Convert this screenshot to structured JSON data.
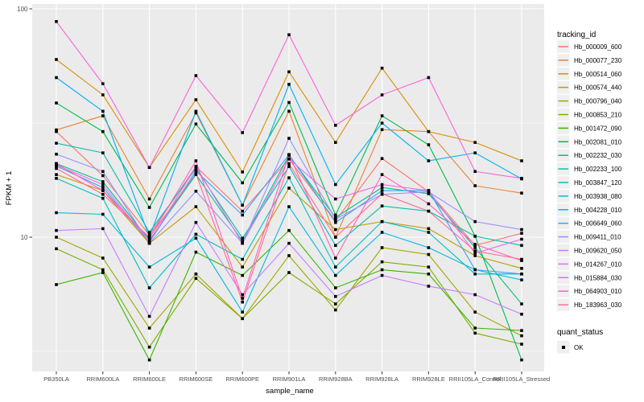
{
  "axes": {
    "x_title": "sample_name",
    "y_title": "FPKM + 1",
    "y_ticks": [
      {
        "label": "100",
        "value": 100
      },
      {
        "label": "10",
        "value": 10
      }
    ],
    "tick_label_color": "#4D4D4D",
    "title_color": "#000000"
  },
  "legend": {
    "title": "tracking_id",
    "key_fill": "#EFEFEF"
  },
  "legend2": {
    "title": "quant_status",
    "items": [
      {
        "label": "OK",
        "marker": "black-square"
      }
    ]
  },
  "chart_data": {
    "type": "line",
    "x_type": "categorical",
    "y_scale": "log10",
    "title": "",
    "xlabel": "sample_name",
    "ylabel": "FPKM + 1",
    "ylim": [
      2.6,
      110
    ],
    "grid": "on",
    "panel_bg": "#EBEBEB",
    "grid_color": "#FFFFFF",
    "point_marker": "black-square",
    "legend_position": "right",
    "categories": [
      "PB350LA",
      "RRIM600LA",
      "RRIM600LE",
      "RRIM600SE",
      "RRIM600PE",
      "RRIM901LA",
      "RRIM928BA",
      "RRIM928LA",
      "RRIM928LE",
      "RRII105LA_Control",
      "RRII105LA_Stressed"
    ],
    "series": [
      {
        "name": "Hb_000009_600",
        "color": "#F8766D",
        "values": [
          29.0,
          18.6,
          10.2,
          20.4,
          13.0,
          22.0,
          11.8,
          22.1,
          15.8,
          9.2,
          10.4
        ]
      },
      {
        "name": "Hb_000077_230",
        "color": "#EA8331",
        "values": [
          29.5,
          34.0,
          14.7,
          35.0,
          13.8,
          35.6,
          10.0,
          29.6,
          29.0,
          16.8,
          15.6
        ]
      },
      {
        "name": "Hb_000514_060",
        "color": "#D89000",
        "values": [
          60.0,
          42.0,
          20.2,
          40.0,
          19.3,
          53.0,
          26.0,
          55.0,
          29.0,
          26.0,
          21.6
        ]
      },
      {
        "name": "Hb_000574_440",
        "color": "#C09B00",
        "values": [
          18.8,
          16.0,
          9.4,
          13.6,
          7.4,
          16.4,
          10.8,
          11.7,
          10.9,
          8.3,
          7.3
        ]
      },
      {
        "name": "Hb_000796_040",
        "color": "#A3A500",
        "values": [
          10.0,
          8.1,
          4.0,
          6.9,
          4.4,
          8.3,
          4.8,
          9.0,
          8.4,
          4.7,
          3.7
        ]
      },
      {
        "name": "Hb_000853_210",
        "color": "#7CAE00",
        "values": [
          8.9,
          7.2,
          3.3,
          6.6,
          4.4,
          7.0,
          5.1,
          7.8,
          7.4,
          3.8,
          3.4
        ]
      },
      {
        "name": "Hb_001472_090",
        "color": "#39B600",
        "values": [
          6.2,
          7.0,
          2.9,
          8.6,
          6.8,
          10.7,
          6.0,
          7.2,
          6.9,
          4.0,
          3.9
        ]
      },
      {
        "name": "Hb_002081_010",
        "color": "#00BB4E",
        "values": [
          38.7,
          29.0,
          13.5,
          31.3,
          17.3,
          38.9,
          12.5,
          34.0,
          25.4,
          10.1,
          2.9
        ]
      },
      {
        "name": "Hb_002232_030",
        "color": "#00C087",
        "values": [
          21.0,
          17.5,
          9.7,
          18.8,
          9.6,
          22.8,
          12.2,
          16.5,
          15.5,
          9.0,
          5.1
        ]
      },
      {
        "name": "Hb_002233_100",
        "color": "#00C1AB",
        "values": [
          25.8,
          23.4,
          10.5,
          20.0,
          9.9,
          20.4,
          9.2,
          13.7,
          13.0,
          10.1,
          9.2
        ]
      },
      {
        "name": "Hb_003847_120",
        "color": "#00BFC4",
        "values": [
          18.1,
          14.8,
          6.0,
          10.3,
          8.0,
          18.2,
          7.4,
          11.7,
          10.5,
          6.9,
          6.9
        ]
      },
      {
        "name": "Hb_003938_080",
        "color": "#00BAE0",
        "values": [
          12.8,
          12.6,
          7.4,
          9.9,
          4.7,
          13.6,
          6.8,
          10.5,
          9.0,
          7.2,
          6.5
        ]
      },
      {
        "name": "Hb_004228_010",
        "color": "#00B0F6",
        "values": [
          50.0,
          35.6,
          10.0,
          35.6,
          13.8,
          46.7,
          17.0,
          31.6,
          21.6,
          23.4,
          18.0
        ]
      },
      {
        "name": "Hb_006649_060",
        "color": "#35A2FF",
        "values": [
          20.5,
          16.5,
          9.5,
          19.5,
          12.5,
          23.0,
          11.6,
          16.0,
          16.0,
          7.2,
          6.9
        ]
      },
      {
        "name": "Hb_009411_010",
        "color": "#9590FF",
        "values": [
          23.1,
          19.4,
          9.4,
          15.9,
          9.4,
          27.1,
          12.0,
          15.4,
          15.8,
          11.7,
          10.8
        ]
      },
      {
        "name": "Hb_009620_050",
        "color": "#C77CFF",
        "values": [
          10.7,
          10.9,
          4.5,
          11.6,
          5.6,
          9.4,
          5.5,
          6.8,
          6.1,
          5.6,
          4.6
        ]
      },
      {
        "name": "Hb_014267_010",
        "color": "#E76BF3",
        "values": [
          20.7,
          17.0,
          9.5,
          20.4,
          9.4,
          22.0,
          14.7,
          17.0,
          16.0,
          8.5,
          9.8
        ]
      },
      {
        "name": "Hb_015884_030",
        "color": "#FA62DB",
        "values": [
          88.0,
          47.0,
          20.2,
          51.0,
          28.7,
          77.0,
          30.9,
          42.0,
          50.0,
          19.4,
          18.1
        ]
      },
      {
        "name": "Hb_064903_010",
        "color": "#FF62BC",
        "values": [
          21.0,
          16.0,
          9.9,
          21.6,
          5.4,
          23.0,
          8.1,
          18.8,
          14.0,
          9.3,
          7.9
        ]
      },
      {
        "name": "Hb_183963_030",
        "color": "#FF6A98",
        "values": [
          20.0,
          15.4,
          10.0,
          19.0,
          5.2,
          21.0,
          10.0,
          15.5,
          13.0,
          8.7,
          8.0
        ]
      }
    ]
  }
}
